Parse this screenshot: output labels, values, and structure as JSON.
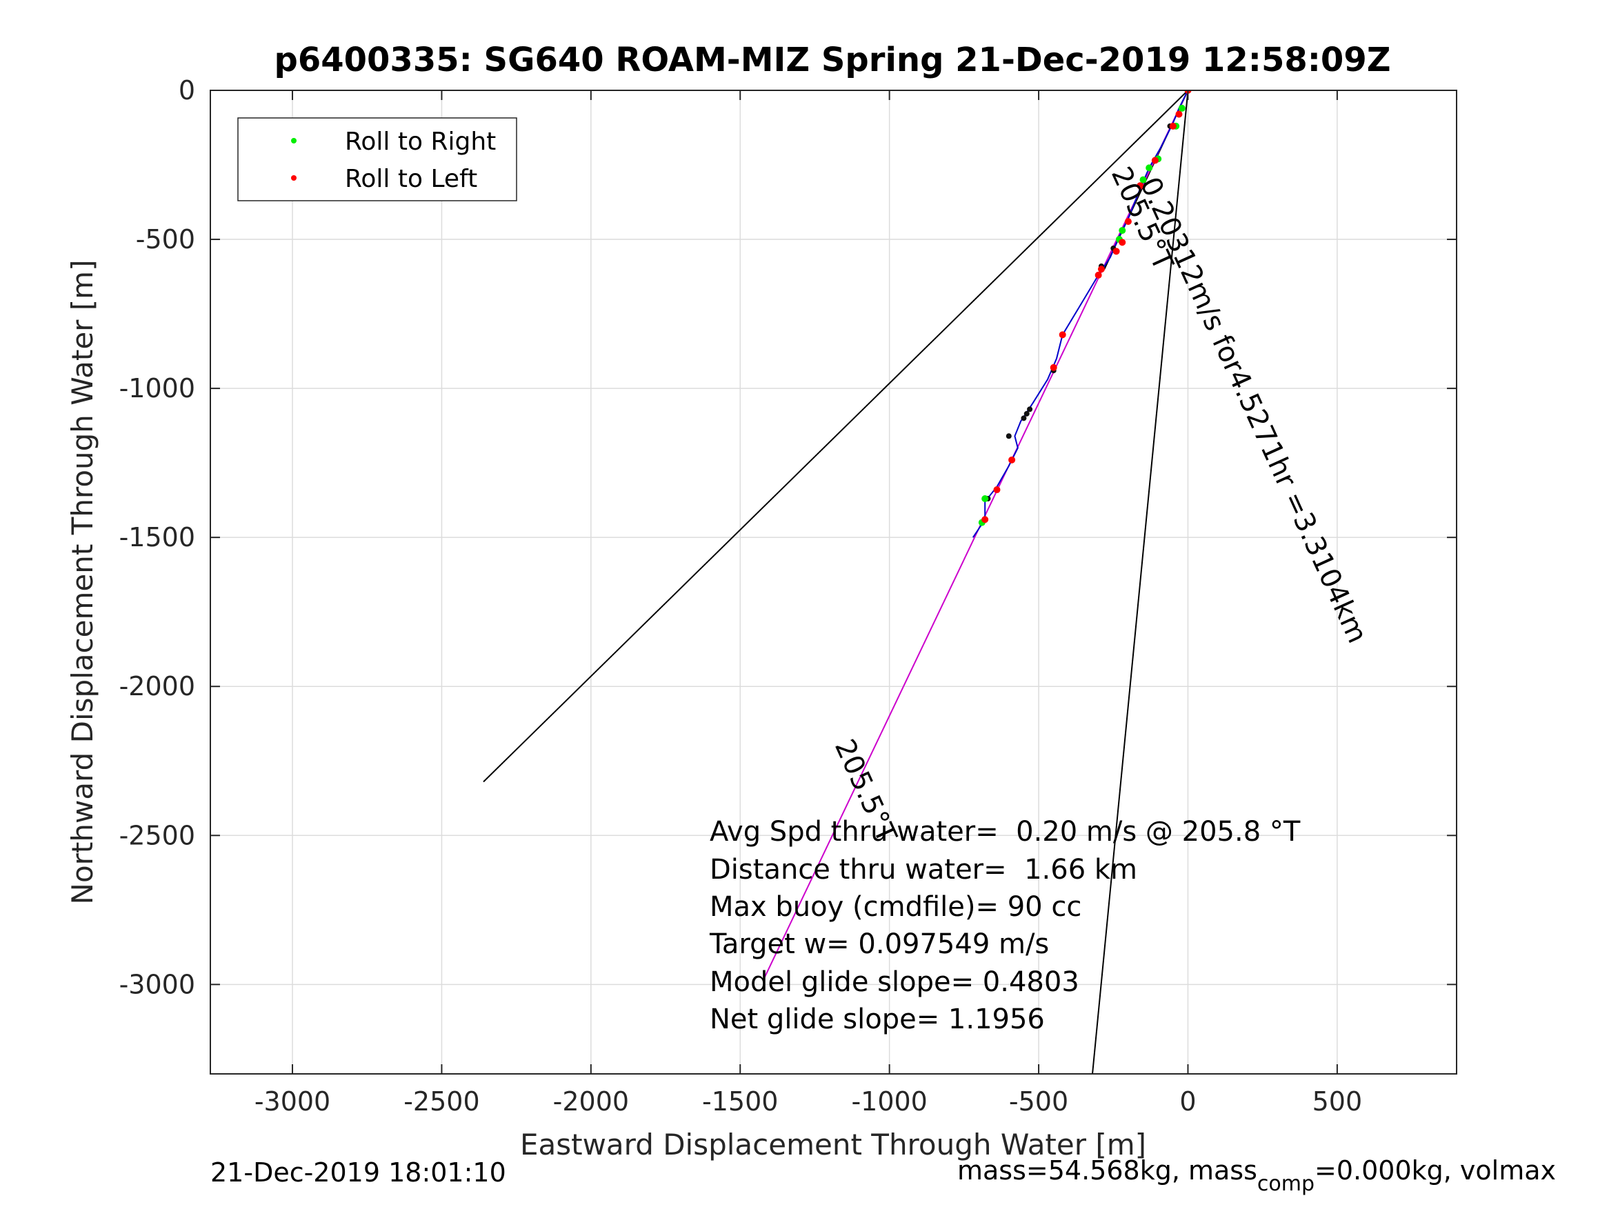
{
  "chart_data": {
    "type": "scatter",
    "title": "p6400335: SG640 ROAM-MIZ Spring 21-Dec-2019 12:58:09Z",
    "xlabel": "Eastward Displacement Through Water [m]",
    "ylabel": "Northward Displacement Through Water [m]",
    "xlim": [
      -3275,
      900
    ],
    "ylim": [
      -3300,
      0
    ],
    "x_ticks": [
      -3000,
      -2500,
      -2000,
      -1500,
      -1000,
      -500,
      0,
      500
    ],
    "x_tick_labels": [
      "-3000",
      "-2500",
      "-2000",
      "-1500",
      "-1000",
      "-500",
      "0",
      "500"
    ],
    "y_ticks": [
      0,
      -500,
      -1000,
      -1500,
      -2000,
      -2500,
      -3000
    ],
    "y_tick_labels": [
      "0",
      "-500",
      "-1000",
      "-1500",
      "-2000",
      "-2500",
      "-3000"
    ],
    "grid": true,
    "legend": {
      "position": "top-left",
      "entries": [
        {
          "label": "Roll to Right",
          "color": "#00ee00"
        },
        {
          "label": "Roll to Left",
          "color": "#ff0000"
        }
      ]
    },
    "series": [
      {
        "name": "Roll to Right",
        "color": "#00ee00",
        "points": [
          [
            -20,
            -60
          ],
          [
            -40,
            -120
          ],
          [
            -100,
            -230
          ],
          [
            -130,
            -260
          ],
          [
            -150,
            -300
          ],
          [
            -220,
            -470
          ],
          [
            -230,
            -500
          ],
          [
            -680,
            -1370
          ],
          [
            -690,
            -1450
          ]
        ]
      },
      {
        "name": "Roll to Left",
        "color": "#ff0000",
        "points": [
          [
            0,
            0
          ],
          [
            -30,
            -80
          ],
          [
            -50,
            -120
          ],
          [
            -110,
            -235
          ],
          [
            -160,
            -320
          ],
          [
            -200,
            -440
          ],
          [
            -220,
            -510
          ],
          [
            -240,
            -540
          ],
          [
            -290,
            -600
          ],
          [
            -300,
            -620
          ],
          [
            -420,
            -820
          ],
          [
            -450,
            -930
          ],
          [
            -590,
            -1240
          ],
          [
            -640,
            -1340
          ],
          [
            -680,
            -1440
          ]
        ]
      }
    ],
    "track": {
      "color": "#0000cc",
      "points": [
        [
          0,
          0
        ],
        [
          -30,
          -60
        ],
        [
          -50,
          -110
        ],
        [
          -90,
          -190
        ],
        [
          -130,
          -260
        ],
        [
          -160,
          -330
        ],
        [
          -200,
          -430
        ],
        [
          -230,
          -490
        ],
        [
          -260,
          -560
        ],
        [
          -300,
          -620
        ],
        [
          -360,
          -720
        ],
        [
          -420,
          -820
        ],
        [
          -440,
          -900
        ],
        [
          -470,
          -970
        ],
        [
          -520,
          -1050
        ],
        [
          -560,
          -1110
        ],
        [
          -580,
          -1160
        ],
        [
          -570,
          -1200
        ],
        [
          -600,
          -1260
        ],
        [
          -640,
          -1330
        ],
        [
          -680,
          -1380
        ],
        [
          -680,
          -1440
        ],
        [
          -720,
          -1500
        ]
      ]
    },
    "black_points": [
      [
        -60,
        -120
      ],
      [
        -250,
        -530
      ],
      [
        -290,
        -590
      ],
      [
        -450,
        -940
      ],
      [
        -530,
        -1070
      ],
      [
        -540,
        -1085
      ],
      [
        -550,
        -1100
      ],
      [
        -600,
        -1160
      ],
      [
        -670,
        -1370
      ]
    ],
    "current_line": {
      "color": "#cc00cc",
      "points": [
        [
          0,
          0
        ],
        [
          -1420,
          -2980
        ]
      ],
      "label": "205.5°T"
    },
    "current_label_text": "0.20312m/s for4.5271hr =3.3104km",
    "heading_label_text": "205.5°T",
    "cone_lines": [
      {
        "color": "#000000",
        "points": [
          [
            0,
            0
          ],
          [
            -2360,
            -2320
          ]
        ]
      },
      {
        "color": "#000000",
        "points": [
          [
            0,
            0
          ],
          [
            -320,
            -3300
          ]
        ]
      },
      {
        "color": "#000000",
        "points": [
          [
            0,
            0
          ],
          [
            -280,
            -600
          ]
        ]
      }
    ],
    "annotations": [
      "Avg Spd thru water=  0.20 m/s @ 205.8 °T",
      "Distance thru water=  1.66 km",
      "Max buoy (cmdfile)= 90 cc",
      "Target w= 0.097549 m/s",
      "Model glide slope= 0.4803",
      "Net glide slope= 1.1956"
    ]
  },
  "footer": {
    "timestamp": "21-Dec-2019 18:01:10",
    "mass_prefix": "mass=54.568kg, mass",
    "mass_sub": "comp",
    "mass_suffix": "=0.000kg, volmax"
  }
}
